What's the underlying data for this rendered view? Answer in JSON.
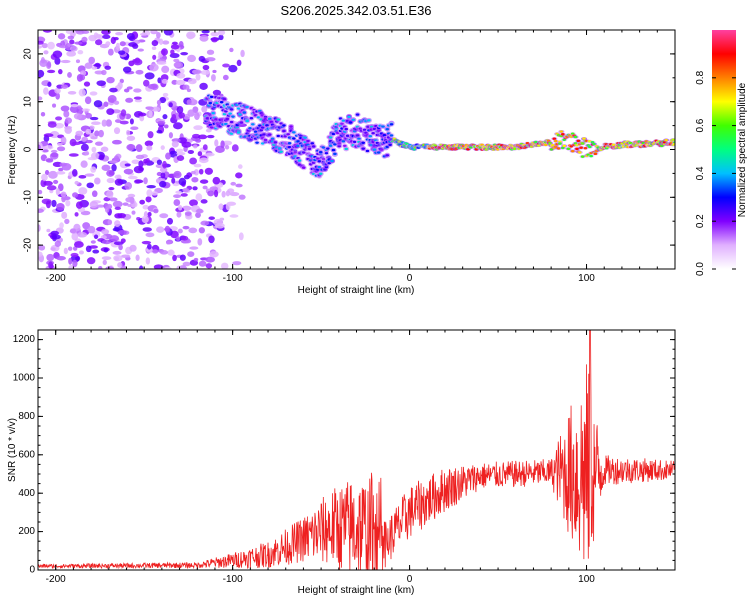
{
  "title": "S206.2025.342.03.51.E36",
  "chart_data": [
    {
      "type": "heatmap",
      "name": "spectrogram",
      "xlabel": "Height of straight line (km)",
      "ylabel": "Frequency (Hz)",
      "xlim": [
        -210,
        150
      ],
      "ylim": [
        -25,
        25
      ],
      "xticks": [
        -200,
        -100,
        0,
        100
      ],
      "xtick_labels": [
        "-200",
        "-100",
        "0",
        "100"
      ],
      "yticks": [
        -20,
        -10,
        0,
        10,
        20
      ],
      "ytick_labels": [
        "-20",
        "-10",
        "0",
        "10",
        "20"
      ],
      "ridge": [
        {
          "x": -110,
          "f": 8
        },
        {
          "x": -95,
          "f": 6
        },
        {
          "x": -80,
          "f": 4
        },
        {
          "x": -65,
          "f": 1
        },
        {
          "x": -50,
          "f": -3
        },
        {
          "x": -40,
          "f": 3
        },
        {
          "x": -30,
          "f": 4
        },
        {
          "x": -20,
          "f": 2
        },
        {
          "x": -10,
          "f": 2
        },
        {
          "x": 0,
          "f": 0.5
        },
        {
          "x": 20,
          "f": 0.5
        },
        {
          "x": 60,
          "f": 0.5
        },
        {
          "x": 80,
          "f": 1.5
        },
        {
          "x": 90,
          "f": 2
        },
        {
          "x": 100,
          "f": 0
        },
        {
          "x": 120,
          "f": 1
        },
        {
          "x": 150,
          "f": 1.5
        }
      ],
      "colorbar": {
        "label": "Normalized spectral amplitude",
        "range": [
          0,
          1
        ],
        "ticks": [
          0.0,
          0.2,
          0.4,
          0.6,
          0.8
        ],
        "tick_labels": [
          "0.0",
          "0.2",
          "0.4",
          "0.6",
          "0.8"
        ],
        "colors": [
          "#ffffff",
          "#e0b0ff",
          "#8000ff",
          "#0000ff",
          "#00c0ff",
          "#00ff80",
          "#40ff00",
          "#ffff00",
          "#ff8000",
          "#ff0000",
          "#ff40a0"
        ]
      }
    },
    {
      "type": "line",
      "name": "snr",
      "xlabel": "Height of straight line (km)",
      "ylabel": "SNR (10 * v/v)",
      "xlim": [
        -210,
        150
      ],
      "ylim": [
        0,
        1250
      ],
      "xticks": [
        -200,
        -100,
        0,
        100
      ],
      "xtick_labels": [
        "-200",
        "-100",
        "0",
        "100"
      ],
      "yticks": [
        0,
        200,
        400,
        600,
        800,
        1000,
        1200
      ],
      "ytick_labels": [
        "0",
        "200",
        "400",
        "600",
        "800",
        "1000",
        "1200"
      ],
      "color": "#ee2020",
      "envelope": [
        {
          "x": -210,
          "base": 20,
          "noise": 10
        },
        {
          "x": -120,
          "base": 25,
          "noise": 15
        },
        {
          "x": -100,
          "base": 50,
          "noise": 40
        },
        {
          "x": -80,
          "base": 80,
          "noise": 70
        },
        {
          "x": -60,
          "base": 160,
          "noise": 120
        },
        {
          "x": -45,
          "base": 220,
          "noise": 200
        },
        {
          "x": -30,
          "base": 220,
          "noise": 280
        },
        {
          "x": -20,
          "base": 180,
          "noise": 300
        },
        {
          "x": -15,
          "base": 120,
          "noise": 120
        },
        {
          "x": 0,
          "base": 300,
          "noise": 140
        },
        {
          "x": 20,
          "base": 420,
          "noise": 120
        },
        {
          "x": 40,
          "base": 490,
          "noise": 70
        },
        {
          "x": 80,
          "base": 510,
          "noise": 70
        },
        {
          "x": 85,
          "base": 510,
          "noise": 200
        },
        {
          "x": 100,
          "base": 500,
          "noise": 600
        },
        {
          "x": 110,
          "base": 520,
          "noise": 80
        },
        {
          "x": 150,
          "base": 520,
          "noise": 50
        }
      ],
      "peak": {
        "x": 102,
        "y": 1250
      }
    }
  ]
}
